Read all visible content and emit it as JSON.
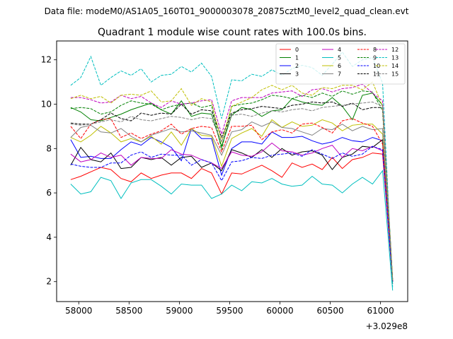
{
  "figure": {
    "suptitle": "Data file: modeM0/AS1A05_160T01_9000003078_20875cztM0_level2_quad_clean.evt"
  },
  "chart_data": {
    "type": "line",
    "title": "Quadrant 1 module wise count rates with 100.0s bins.",
    "xlabel": "",
    "ylabel": "",
    "x_offset_label": "+3.029e8",
    "xlim": [
      57780,
      61270
    ],
    "ylim": [
      1.1,
      12.85
    ],
    "xticks": [
      58000,
      58500,
      59000,
      59500,
      60000,
      60500,
      61000
    ],
    "yticks": [
      2,
      4,
      6,
      8,
      10,
      12
    ],
    "legend_position": "top-right",
    "grid": false,
    "x": [
      57920,
      58020,
      58120,
      58220,
      58320,
      58420,
      58520,
      58620,
      58720,
      58820,
      58920,
      59020,
      59120,
      59220,
      59320,
      59420,
      59520,
      59620,
      59720,
      59820,
      59920,
      60020,
      60120,
      60220,
      60320,
      60420,
      60520,
      60620,
      60720,
      60820,
      60920,
      61020,
      61120
    ],
    "series": [
      {
        "name": "0",
        "color": "#ff0000",
        "dash": "solid",
        "values": [
          6.6,
          6.75,
          6.95,
          7.15,
          7.05,
          6.65,
          6.5,
          6.9,
          6.65,
          6.8,
          6.9,
          6.9,
          6.65,
          7.1,
          6.9,
          5.95,
          6.9,
          6.85,
          7.05,
          7.25,
          7.0,
          6.7,
          7.35,
          7.15,
          7.3,
          7.05,
          7.6,
          7.1,
          7.5,
          7.6,
          7.8,
          7.75,
          2.0
        ]
      },
      {
        "name": "1",
        "color": "#008000",
        "dash": "solid",
        "values": [
          9.85,
          9.65,
          9.3,
          9.25,
          9.4,
          9.55,
          9.75,
          9.9,
          10.05,
          9.75,
          9.55,
          10.15,
          9.45,
          9.6,
          9.55,
          8.1,
          9.5,
          9.85,
          9.75,
          9.45,
          9.7,
          9.75,
          10.25,
          10.1,
          10.0,
          9.95,
          10.3,
          9.9,
          9.3,
          10.4,
          10.5,
          9.95,
          2.1
        ]
      },
      {
        "name": "2",
        "color": "#0000ff",
        "dash": "solid",
        "values": [
          8.4,
          7.6,
          7.65,
          7.55,
          7.55,
          7.95,
          8.3,
          8.15,
          8.5,
          8.3,
          8.05,
          7.45,
          8.9,
          8.45,
          8.45,
          6.8,
          8.0,
          8.3,
          8.3,
          8.2,
          8.75,
          8.5,
          8.5,
          8.55,
          8.35,
          8.2,
          8.3,
          8.5,
          8.35,
          8.3,
          8.5,
          8.35,
          2.0
        ]
      },
      {
        "name": "3",
        "color": "#000000",
        "dash": "solid",
        "values": [
          7.25,
          8.05,
          7.5,
          7.4,
          7.8,
          7.1,
          7.15,
          7.6,
          7.5,
          7.6,
          7.25,
          7.6,
          7.65,
          7.15,
          7.35,
          7.0,
          7.95,
          7.8,
          7.6,
          7.95,
          7.6,
          8.0,
          7.7,
          7.85,
          7.9,
          7.7,
          7.05,
          7.6,
          7.75,
          8.1,
          8.05,
          8.4,
          1.9
        ]
      },
      {
        "name": "4",
        "color": "#bf00bf",
        "dash": "solid",
        "values": [
          7.75,
          7.4,
          7.5,
          7.8,
          7.6,
          7.7,
          7.25,
          7.6,
          7.55,
          7.55,
          7.95,
          7.75,
          7.7,
          7.5,
          7.35,
          7.1,
          7.85,
          7.7,
          7.65,
          7.85,
          8.25,
          7.9,
          7.85,
          7.7,
          7.8,
          8.0,
          8.15,
          7.6,
          8.0,
          7.9,
          8.1,
          7.9,
          2.0
        ]
      },
      {
        "name": "5",
        "color": "#00bfbf",
        "dash": "solid",
        "values": [
          6.4,
          5.95,
          6.05,
          6.7,
          6.55,
          5.75,
          6.45,
          6.6,
          6.6,
          6.3,
          5.95,
          6.4,
          6.35,
          6.35,
          5.75,
          5.95,
          6.35,
          6.1,
          6.5,
          6.45,
          6.65,
          6.4,
          6.3,
          6.35,
          6.75,
          6.4,
          6.35,
          6.0,
          6.4,
          6.7,
          6.4,
          7.0,
          1.6
        ]
      },
      {
        "name": "6",
        "color": "#bfbf00",
        "dash": "solid",
        "values": [
          8.5,
          8.3,
          8.6,
          9.0,
          8.7,
          8.3,
          8.45,
          8.3,
          8.55,
          8.2,
          8.75,
          8.15,
          8.9,
          8.6,
          8.55,
          7.2,
          8.45,
          8.7,
          8.9,
          8.55,
          9.3,
          8.95,
          9.2,
          9.0,
          9.05,
          9.3,
          9.15,
          8.8,
          9.05,
          9.1,
          9.1,
          8.65,
          2.1
        ]
      },
      {
        "name": "7",
        "color": "#808080",
        "dash": "solid",
        "values": [
          8.5,
          8.95,
          9.05,
          8.75,
          8.7,
          8.9,
          8.55,
          8.3,
          8.6,
          8.75,
          8.9,
          8.75,
          8.8,
          8.7,
          8.6,
          7.7,
          8.75,
          8.85,
          9.2,
          9.0,
          9.2,
          8.95,
          8.9,
          8.75,
          8.6,
          8.9,
          8.85,
          9.1,
          8.8,
          9.0,
          8.85,
          8.9,
          2.05
        ]
      },
      {
        "name": "8",
        "color": "#ff0000",
        "dash": "dashed",
        "values": [
          9.0,
          8.45,
          9.1,
          9.3,
          9.35,
          8.5,
          8.7,
          8.45,
          8.65,
          8.8,
          9.1,
          8.65,
          8.9,
          9.0,
          8.95,
          7.85,
          9.0,
          9.0,
          9.05,
          8.4,
          8.75,
          8.85,
          8.7,
          9.1,
          9.15,
          8.95,
          8.7,
          9.25,
          9.35,
          9.15,
          9.0,
          8.2,
          2.0
        ]
      },
      {
        "name": "9",
        "color": "#008000",
        "dash": "dashed",
        "values": [
          9.8,
          9.85,
          9.8,
          9.55,
          9.65,
          9.95,
          10.15,
          10.05,
          10.0,
          9.75,
          9.9,
          10.0,
          10.05,
          9.85,
          9.95,
          7.95,
          9.9,
          10.0,
          10.05,
          10.2,
          10.4,
          10.35,
          10.25,
          10.4,
          10.3,
          10.5,
          10.35,
          10.6,
          10.45,
          10.6,
          10.55,
          9.7,
          2.1
        ]
      },
      {
        "name": "10",
        "color": "#0000ff",
        "dash": "dashed",
        "values": [
          7.3,
          7.2,
          7.15,
          7.15,
          7.35,
          7.35,
          7.7,
          7.85,
          7.6,
          7.75,
          7.7,
          7.7,
          7.25,
          7.5,
          7.35,
          6.55,
          7.4,
          7.45,
          7.6,
          7.55,
          7.7,
          7.75,
          7.8,
          7.65,
          7.95,
          7.75,
          7.55,
          7.8,
          7.65,
          7.75,
          8.1,
          7.95,
          2.0
        ]
      },
      {
        "name": "11",
        "color": "#000000",
        "dash": "dashed",
        "values": [
          9.15,
          9.1,
          9.1,
          9.3,
          9.6,
          9.35,
          9.25,
          9.6,
          9.5,
          9.6,
          9.55,
          10.0,
          9.55,
          9.75,
          9.7,
          8.5,
          9.6,
          9.75,
          9.8,
          9.9,
          9.85,
          9.8,
          9.95,
          10.0,
          10.1,
          10.05,
          10.1,
          9.9,
          10.05,
          9.75,
          9.85,
          9.85,
          2.0
        ]
      },
      {
        "name": "12",
        "color": "#bf00bf",
        "dash": "dashed",
        "values": [
          10.3,
          10.3,
          10.2,
          10.05,
          10.1,
          10.4,
          10.25,
          10.35,
          10.05,
          9.85,
          10.15,
          10.0,
          10.05,
          10.15,
          10.2,
          8.65,
          10.15,
          10.3,
          10.3,
          10.3,
          10.5,
          10.55,
          10.6,
          10.35,
          10.65,
          10.7,
          10.55,
          10.7,
          10.75,
          10.9,
          10.5,
          10.15,
          2.05
        ]
      },
      {
        "name": "13",
        "color": "#00bfbf",
        "dash": "dashed",
        "values": [
          10.85,
          11.2,
          12.15,
          10.85,
          11.2,
          11.5,
          11.3,
          11.6,
          11.0,
          11.3,
          11.35,
          11.7,
          11.45,
          11.85,
          11.25,
          9.35,
          11.1,
          11.05,
          11.35,
          11.25,
          11.55,
          11.3,
          11.6,
          11.75,
          11.65,
          11.3,
          11.8,
          12.35,
          11.7,
          12.0,
          12.1,
          10.95,
          1.75
        ]
      },
      {
        "name": "14",
        "color": "#bfbf00",
        "dash": "dashed",
        "values": [
          10.25,
          10.4,
          10.25,
          10.35,
          10.05,
          10.4,
          10.45,
          10.4,
          10.6,
          10.1,
          10.15,
          10.7,
          9.95,
          10.25,
          10.1,
          8.3,
          9.9,
          10.1,
          10.3,
          10.65,
          10.85,
          10.65,
          10.85,
          10.5,
          10.4,
          10.75,
          10.7,
          10.85,
          10.85,
          10.65,
          11.0,
          9.9,
          2.1
        ]
      },
      {
        "name": "15",
        "color": "#808080",
        "dash": "dashed",
        "values": [
          9.1,
          9.05,
          9.1,
          9.2,
          9.3,
          9.2,
          9.45,
          9.3,
          9.25,
          9.35,
          9.45,
          9.4,
          9.3,
          9.4,
          9.35,
          8.3,
          9.5,
          9.55,
          9.45,
          9.6,
          9.7,
          9.65,
          9.75,
          9.8,
          9.7,
          9.85,
          9.9,
          9.95,
          10.0,
          10.05,
          10.1,
          9.9,
          2.05
        ]
      }
    ]
  }
}
